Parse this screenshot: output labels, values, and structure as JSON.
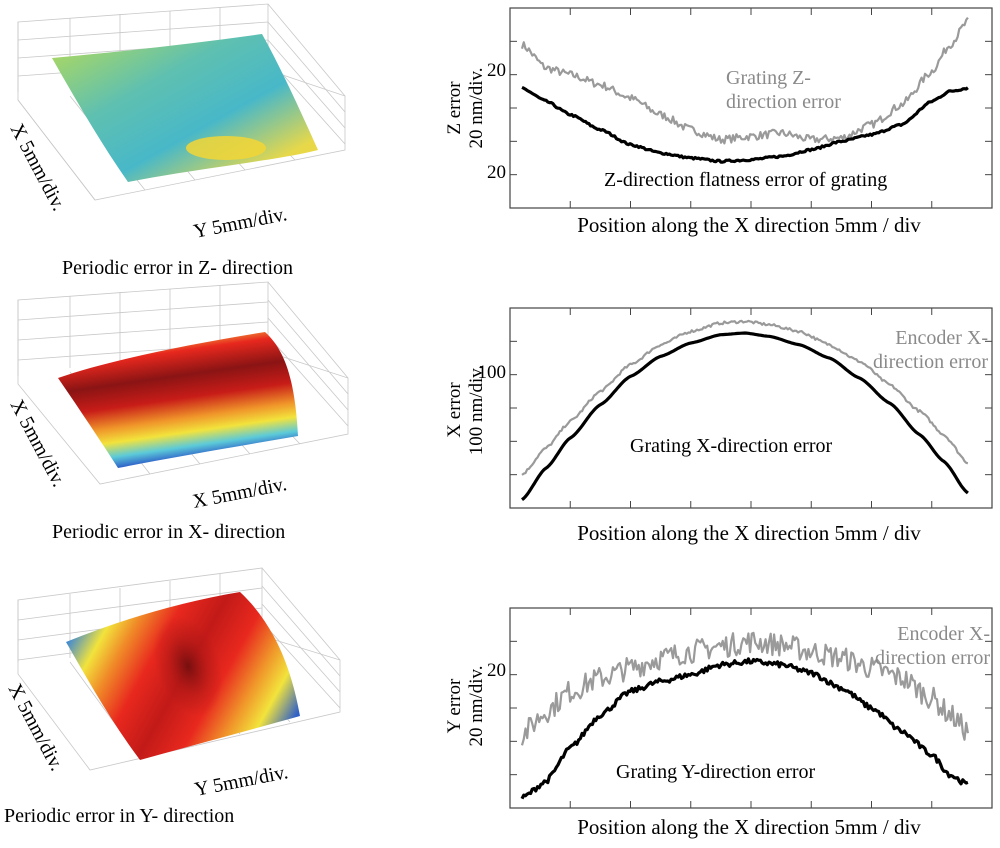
{
  "colors": {
    "grating_line": "#000000",
    "encoder_line": "#9a9a9a",
    "axis": "#444444",
    "surface_low": "#2e5fc9",
    "surface_mid": "#f2e33c",
    "surface_high": "#e8281e",
    "surface_peak": "#7a1010"
  },
  "surfaces": [
    {
      "caption": "Periodic error in Z- direction",
      "x_axis_label": "X 5mm/div.",
      "y_axis_label": "Y 5mm/div.",
      "colormap_range": "low (flat, cyan-yellow)"
    },
    {
      "caption": "Periodic error in X- direction",
      "x_axis_label": "X 5mm/div.",
      "y_axis_label": "X 5mm/div.",
      "colormap_range": "high band across middle"
    },
    {
      "caption": "Periodic error in Y- direction",
      "x_axis_label": "X 5mm/div.",
      "y_axis_label": "Y 5mm/div.",
      "colormap_range": "high spot at center"
    }
  ],
  "chart_data": [
    {
      "type": "line",
      "title": "",
      "xlabel": "Position along the X direction 5mm / div",
      "ylabel": "Z error\n20 nm/div.",
      "ylabel_lines": [
        "Z error",
        "20 nm/div."
      ],
      "ytick_labels": [
        "20",
        "20"
      ],
      "x_divisions": 8,
      "y_divisions": 6,
      "xlim": [
        0,
        8
      ],
      "ylim": [
        0,
        6
      ],
      "series": [
        {
          "name": "Grating Z-direction error",
          "label_lines": [
            "Grating Z-",
            "direction error"
          ],
          "color_key": "encoder",
          "noise": 0.12,
          "x": [
            0.2,
            0.6,
            1.0,
            1.5,
            2.0,
            2.5,
            3.0,
            3.5,
            4.0,
            4.5,
            5.0,
            5.5,
            6.0,
            6.5,
            7.0,
            7.3,
            7.6
          ],
          "y": [
            4.9,
            4.2,
            4.0,
            3.7,
            3.3,
            2.8,
            2.35,
            2.05,
            2.15,
            2.25,
            2.05,
            2.1,
            2.5,
            3.1,
            4.1,
            4.9,
            5.6
          ]
        },
        {
          "name": "Z-direction flatness error of grating",
          "label_lines": [
            "Z-direction flatness error of grating"
          ],
          "color_key": "grating",
          "noise": 0.03,
          "x": [
            0.2,
            0.6,
            1.0,
            1.5,
            2.0,
            2.5,
            3.0,
            3.5,
            4.0,
            4.5,
            5.0,
            5.5,
            6.0,
            6.5,
            7.0,
            7.3,
            7.6
          ],
          "y": [
            3.6,
            3.2,
            2.8,
            2.35,
            1.9,
            1.65,
            1.5,
            1.4,
            1.45,
            1.55,
            1.75,
            2.0,
            2.2,
            2.5,
            3.2,
            3.5,
            3.6
          ]
        }
      ]
    },
    {
      "type": "line",
      "title": "",
      "xlabel": "Position along the X direction 5mm / div",
      "ylabel": "X error\n100 nm/div.",
      "ylabel_lines": [
        "X error",
        "100 nm/div."
      ],
      "ytick_labels": [
        "100"
      ],
      "x_divisions": 8,
      "y_divisions": 6,
      "xlim": [
        0,
        8
      ],
      "ylim": [
        0,
        6
      ],
      "series": [
        {
          "name": "Encoder X-direction error",
          "label_lines": [
            "Encoder X-",
            "direction error"
          ],
          "color_key": "encoder",
          "noise": 0.04,
          "x": [
            0.2,
            0.6,
            1.0,
            1.5,
            2.0,
            2.5,
            3.0,
            3.5,
            3.9,
            4.3,
            4.8,
            5.3,
            5.8,
            6.3,
            6.8,
            7.2,
            7.6
          ],
          "y": [
            1.0,
            1.8,
            2.6,
            3.5,
            4.3,
            4.9,
            5.3,
            5.55,
            5.6,
            5.5,
            5.3,
            4.9,
            4.4,
            3.7,
            2.9,
            2.2,
            1.35
          ]
        },
        {
          "name": "Grating X-direction error",
          "label_lines": [
            "Grating X-direction error"
          ],
          "color_key": "grating",
          "noise": 0.0,
          "x": [
            0.2,
            0.6,
            1.0,
            1.5,
            2.0,
            2.5,
            3.0,
            3.5,
            3.9,
            4.3,
            4.8,
            5.3,
            5.8,
            6.3,
            6.8,
            7.2,
            7.6
          ],
          "y": [
            0.25,
            1.2,
            2.1,
            3.1,
            3.95,
            4.55,
            4.95,
            5.2,
            5.25,
            5.15,
            4.9,
            4.5,
            3.9,
            3.15,
            2.2,
            1.4,
            0.45
          ]
        }
      ]
    },
    {
      "type": "line",
      "title": "",
      "xlabel": "Position along the X direction 5mm / div",
      "ylabel": "Y error\n20 nm/div.",
      "ylabel_lines": [
        "Y error",
        "20 nm/div."
      ],
      "ytick_labels": [
        "20"
      ],
      "x_divisions": 8,
      "y_divisions": 6,
      "xlim": [
        0,
        8
      ],
      "ylim": [
        0,
        6
      ],
      "series": [
        {
          "name": "Encoder X-direction error",
          "label_lines": [
            "Encoder X-",
            "direction error"
          ],
          "color_key": "encoder",
          "noise": 0.35,
          "x": [
            0.2,
            0.6,
            1.0,
            1.5,
            2.0,
            2.5,
            3.0,
            3.5,
            4.0,
            4.5,
            5.0,
            5.5,
            6.0,
            6.5,
            7.0,
            7.3,
            7.6
          ],
          "y": [
            2.2,
            2.9,
            3.5,
            3.9,
            4.2,
            4.5,
            4.7,
            4.85,
            5.0,
            4.9,
            4.7,
            4.5,
            4.2,
            3.9,
            3.3,
            2.8,
            2.3
          ]
        },
        {
          "name": "Grating Y-direction error",
          "label_lines": [
            "Grating Y-direction error"
          ],
          "color_key": "grating",
          "noise": 0.08,
          "x": [
            0.2,
            0.6,
            1.0,
            1.5,
            2.0,
            2.5,
            3.0,
            3.5,
            4.0,
            4.5,
            5.0,
            5.5,
            6.0,
            6.5,
            7.0,
            7.3,
            7.6
          ],
          "y": [
            0.3,
            0.8,
            1.8,
            2.8,
            3.5,
            3.8,
            4.0,
            4.3,
            4.4,
            4.3,
            4.05,
            3.6,
            3.0,
            2.3,
            1.6,
            1.0,
            0.7
          ]
        }
      ]
    }
  ]
}
